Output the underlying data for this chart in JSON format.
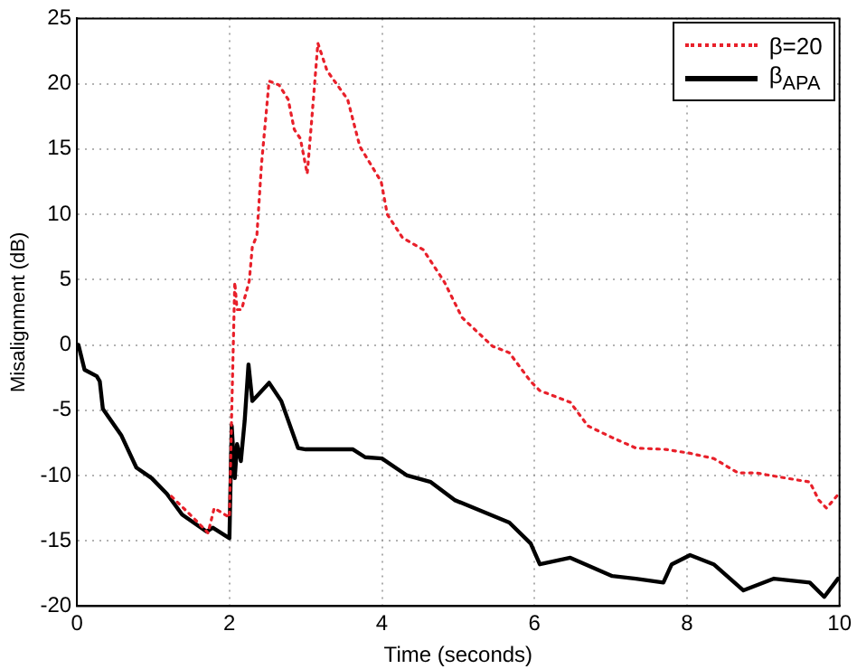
{
  "chart_data": {
    "type": "line",
    "xlabel": "Time (seconds)",
    "ylabel": "Misalignment (dB)",
    "xlim": [
      0,
      10
    ],
    "ylim": [
      -20,
      25
    ],
    "xticks": [
      0,
      2,
      4,
      6,
      8,
      10
    ],
    "yticks": [
      -20,
      -15,
      -10,
      -5,
      0,
      5,
      10,
      15,
      20,
      25
    ],
    "grid": true,
    "legend": "top right",
    "marker": "none",
    "series": [
      {
        "name": "β=20",
        "color": "#e8202a",
        "line_style": "dotted",
        "x": [
          1.24,
          1.52,
          1.72,
          1.8,
          2.0,
          2.03,
          2.07,
          2.1,
          2.16,
          2.2,
          2.26,
          2.3,
          2.36,
          2.42,
          2.52,
          2.65,
          2.77,
          2.85,
          2.93,
          3.02,
          3.08,
          3.16,
          3.28,
          3.55,
          3.71,
          3.99,
          4.07,
          4.27,
          4.54,
          4.82,
          5.05,
          5.45,
          5.67,
          5.95,
          6.07,
          6.47,
          6.7,
          7.02,
          7.33,
          7.72,
          8.04,
          8.35,
          8.67,
          8.9,
          9.3,
          9.61,
          9.73,
          9.83,
          9.99
        ],
        "values": [
          -11.6,
          -13.2,
          -14.4,
          -12.5,
          -13.2,
          -5.1,
          4.8,
          2.7,
          2.7,
          3.6,
          4.9,
          7.5,
          8.4,
          13.8,
          20.2,
          19.9,
          18.8,
          16.5,
          15.8,
          13.1,
          17.3,
          23.1,
          21.0,
          18.8,
          15.2,
          12.5,
          10.0,
          8.2,
          7.3,
          4.8,
          2.1,
          -0.1,
          -0.6,
          -2.8,
          -3.5,
          -4.4,
          -6.2,
          -7.1,
          -7.9,
          -8.0,
          -8.3,
          -8.7,
          -9.8,
          -9.8,
          -10.2,
          -10.5,
          -11.9,
          -12.5,
          -11.4
        ]
      },
      {
        "name": "β$_{APA}$",
        "color": "#000000",
        "line_style": "solid",
        "x": [
          0.02,
          0.1,
          0.26,
          0.3,
          0.34,
          0.58,
          0.78,
          0.98,
          1.18,
          1.38,
          1.7,
          1.78,
          2.0,
          2.03,
          2.07,
          2.1,
          2.15,
          2.2,
          2.25,
          2.3,
          2.52,
          2.68,
          2.9,
          3.0,
          3.62,
          3.78,
          4.0,
          4.33,
          4.64,
          4.96,
          5.67,
          5.95,
          6.07,
          6.47,
          7.02,
          7.33,
          7.69,
          7.8,
          8.04,
          8.35,
          8.74,
          9.14,
          9.61,
          9.8,
          9.98
        ],
        "values": [
          0,
          -1.9,
          -2.4,
          -2.8,
          -4.9,
          -6.9,
          -9.4,
          -10.2,
          -11.4,
          -13.0,
          -14.3,
          -14.0,
          -14.8,
          -6.2,
          -10.2,
          -7.6,
          -8.9,
          -5.8,
          -1.5,
          -4.3,
          -2.9,
          -4.3,
          -7.9,
          -8.0,
          -8.0,
          -8.6,
          -8.7,
          -10.0,
          -10.5,
          -11.9,
          -13.6,
          -15.2,
          -16.8,
          -16.3,
          -17.7,
          -17.9,
          -18.2,
          -16.8,
          -16.1,
          -16.8,
          -18.8,
          -17.9,
          -18.2,
          -19.3,
          -17.9
        ]
      }
    ]
  }
}
